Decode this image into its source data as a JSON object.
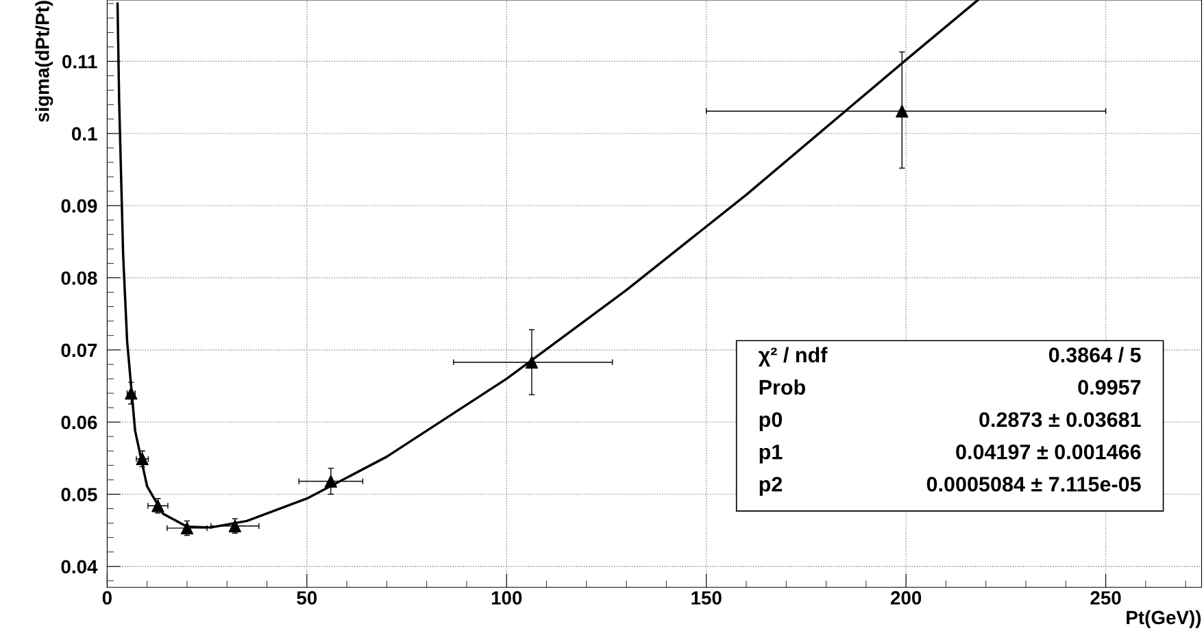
{
  "chart_data": {
    "type": "scatter",
    "xlabel": "Pt(GeV))",
    "ylabel": "sigma(dPt/Pt)",
    "xlim": [
      0,
      274
    ],
    "ylim": [
      0.0371,
      0.1185
    ],
    "xticks": [
      0,
      50,
      100,
      150,
      200,
      250
    ],
    "yticks": [
      0.04,
      0.05,
      0.06,
      0.07,
      0.08,
      0.09,
      0.1,
      0.11
    ],
    "grid": true,
    "series": [
      {
        "color": "#000000",
        "marker": "triangle",
        "x": [
          6.0,
          8.8,
          12.7,
          20,
          32,
          56,
          106.3,
          199
        ],
        "values": [
          0.064,
          0.0549,
          0.0484,
          0.0453,
          0.0456,
          0.0518,
          0.0683,
          0.1031
        ],
        "errors": [
          0.0015,
          0.0011,
          0.001,
          0.001,
          0.001,
          0.0018,
          [
            0.0638,
            0.0728
          ],
          [
            0.0952,
            0.1113
          ]
        ],
        "xerrors": [
          1,
          1.5,
          2.5,
          5,
          6,
          8,
          [
            86.7,
            126.5
          ],
          [
            150,
            250
          ]
        ]
      },
      {
        "type": "line",
        "color": "#000000",
        "marker": "none",
        "line_style": "solid",
        "x": [
          2.6,
          3,
          4,
          5,
          7,
          10,
          14,
          20,
          26,
          35,
          50,
          70,
          100,
          130,
          160,
          200,
          218
        ],
        "values": [
          0.118,
          0.1046,
          0.0832,
          0.0712,
          0.0588,
          0.0511,
          0.0473,
          0.0455,
          0.0454,
          0.0463,
          0.0494,
          0.0552,
          0.066,
          0.0783,
          0.0915,
          0.1102,
          0.1185
        ]
      }
    ],
    "annotations": [
      "χ² / ndf",
      "0.3864 / 5",
      "Prob",
      "0.9957",
      "p0",
      "0.2873 ± 0.03681",
      "p1",
      "0.04197 ± 0.001466",
      "p2",
      "0.0005084 ± 7.115e-05"
    ]
  }
}
